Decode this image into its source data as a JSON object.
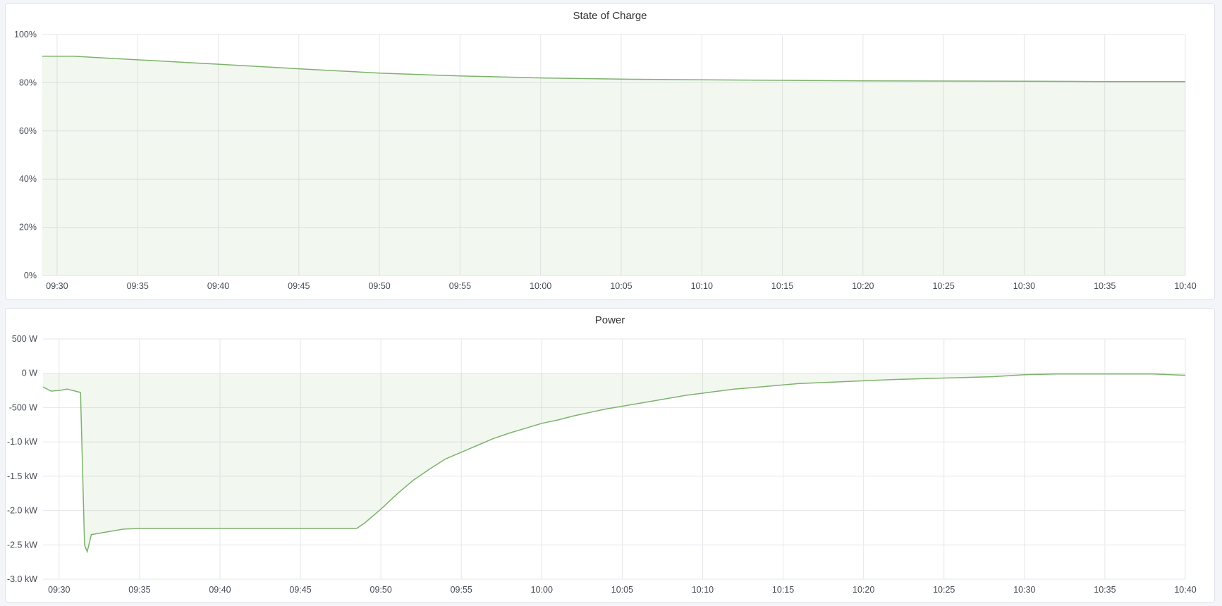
{
  "chart_data": [
    {
      "type": "area",
      "title": "State of Charge",
      "color": "#7eb26d",
      "yticks": [
        "0%",
        "20%",
        "40%",
        "60%",
        "80%",
        "100%"
      ],
      "ylim": [
        0,
        100
      ],
      "xticks": [
        "09:30",
        "09:35",
        "09:40",
        "09:45",
        "09:50",
        "09:55",
        "10:00",
        "10:05",
        "10:10",
        "10:15",
        "10:20",
        "10:25",
        "10:30",
        "10:35",
        "10:40"
      ],
      "xlim": [
        "09:29:05",
        "10:40"
      ],
      "grid": true,
      "x": [
        "09:29:05",
        "09:31",
        "09:35",
        "09:40",
        "09:45",
        "09:50",
        "09:55",
        "10:00",
        "10:05",
        "10:10",
        "10:15",
        "10:20",
        "10:25",
        "10:30",
        "10:35",
        "10:40"
      ],
      "y": [
        91,
        91,
        89.5,
        87.7,
        85.8,
        84,
        82.8,
        82,
        81.5,
        81.2,
        81,
        80.8,
        80.7,
        80.6,
        80.5,
        80.5
      ]
    },
    {
      "type": "area",
      "title": "Power",
      "color": "#7eb26d",
      "yticks": [
        "-3.0 kW",
        "-2.5 kW",
        "-2.0 kW",
        "-1.5 kW",
        "-1.0 kW",
        "-500 W",
        "0 W",
        "500 W"
      ],
      "ylim": [
        -3000,
        500
      ],
      "xticks": [
        "09:30",
        "09:35",
        "09:40",
        "09:45",
        "09:50",
        "09:55",
        "10:00",
        "10:05",
        "10:10",
        "10:15",
        "10:20",
        "10:25",
        "10:30",
        "10:35",
        "10:40"
      ],
      "xlim": [
        "09:29:00",
        "10:40"
      ],
      "grid": true,
      "x": [
        "09:29:00",
        "09:29:30",
        "09:30:00",
        "09:30:30",
        "09:31:00",
        "09:31:20",
        "09:31:35",
        "09:31:45",
        "09:32:00",
        "09:33:00",
        "09:34:00",
        "09:35:00",
        "09:38:00",
        "09:41:00",
        "09:44:00",
        "09:47:00",
        "09:48:30",
        "09:49:00",
        "09:50:00",
        "09:51:00",
        "09:52:00",
        "09:53:00",
        "09:54:00",
        "09:55:00",
        "09:56:00",
        "09:57:00",
        "09:58:00",
        "09:59:00",
        "10:00:00",
        "10:01:00",
        "10:02:00",
        "10:03:00",
        "10:04:00",
        "10:05:00",
        "10:06:00",
        "10:07:00",
        "10:08:00",
        "10:09:00",
        "10:10:00",
        "10:11:00",
        "10:12:00",
        "10:13:00",
        "10:14:00",
        "10:15:00",
        "10:16:00",
        "10:18:00",
        "10:20:00",
        "10:22:00",
        "10:25:00",
        "10:28:00",
        "10:30:00",
        "10:32:00",
        "10:35:00",
        "10:38:00",
        "10:40:00"
      ],
      "y": [
        -200,
        -260,
        -250,
        -230,
        -260,
        -280,
        -2500,
        -2600,
        -2350,
        -2310,
        -2270,
        -2260,
        -2260,
        -2260,
        -2260,
        -2260,
        -2260,
        -2180,
        -1980,
        -1760,
        -1560,
        -1400,
        -1250,
        -1150,
        -1050,
        -950,
        -870,
        -800,
        -730,
        -680,
        -620,
        -570,
        -520,
        -480,
        -440,
        -400,
        -360,
        -320,
        -290,
        -260,
        -230,
        -210,
        -190,
        -170,
        -150,
        -130,
        -110,
        -90,
        -70,
        -50,
        -20,
        -10,
        -10,
        -10,
        -30
      ]
    }
  ]
}
